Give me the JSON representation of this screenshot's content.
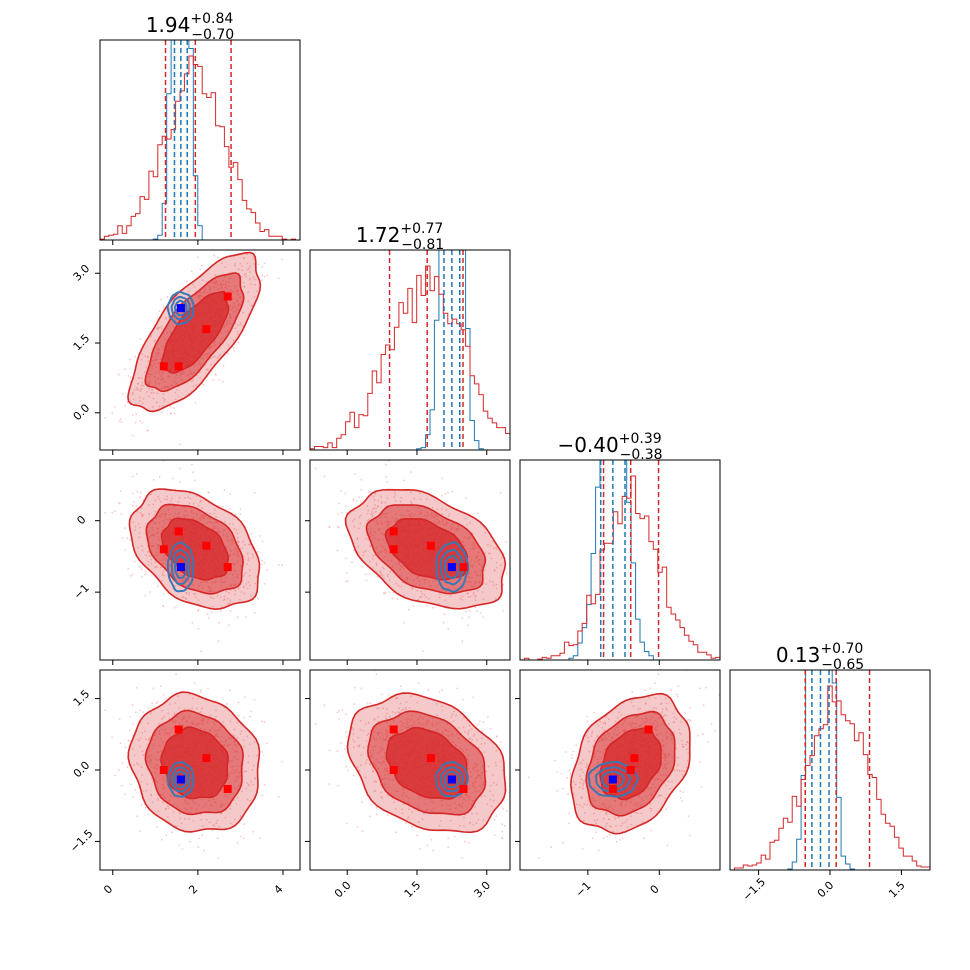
{
  "chart_data": {
    "type": "corner",
    "parameters": 4,
    "colors": {
      "samples_a": "#d62728",
      "samples_b": "#1f77b4",
      "marker_a": "#ff0000",
      "marker_b": "#0000ff"
    },
    "titles": [
      {
        "value": "1.94",
        "plus": "+0.84",
        "minus": "−0.70"
      },
      {
        "value": "1.72",
        "plus": "+0.77",
        "minus": "−0.81"
      },
      {
        "value": "−0.40",
        "plus": "+0.39",
        "minus": "−0.38"
      },
      {
        "value": "0.13",
        "plus": "+0.70",
        "minus": "−0.65"
      }
    ],
    "axes": [
      {
        "range": [
          -0.3,
          4.4
        ],
        "ticks": [
          0,
          2,
          4
        ],
        "tick_labels": [
          "0",
          "2",
          "4"
        ]
      },
      {
        "range": [
          -0.8,
          3.5
        ],
        "ticks": [
          0.0,
          1.5,
          3.0
        ],
        "tick_labels": [
          "0.0",
          "1.5",
          "3.0"
        ]
      },
      {
        "range": [
          -1.95,
          0.85
        ],
        "ticks": [
          -1,
          0
        ],
        "tick_labels": [
          "−1",
          "0"
        ]
      },
      {
        "range": [
          -2.1,
          2.1
        ],
        "ticks": [
          -1.5,
          0.0,
          1.5
        ],
        "tick_labels": [
          "−1.5",
          "0.0",
          "1.5"
        ]
      }
    ],
    "means": {
      "a": [
        1.94,
        1.72,
        -0.4,
        0.13
      ],
      "b": [
        1.6,
        2.25,
        -0.65,
        -0.2
      ]
    },
    "quantiles_a": [
      [
        1.24,
        1.94,
        2.78
      ],
      [
        0.91,
        1.72,
        2.49
      ],
      [
        -0.78,
        -0.4,
        -0.01
      ],
      [
        -0.52,
        0.13,
        0.83
      ]
    ],
    "quantiles_b": [
      [
        1.45,
        1.6,
        1.75
      ],
      [
        2.08,
        2.25,
        2.42
      ],
      [
        -0.82,
        -0.65,
        -0.48
      ],
      [
        -0.38,
        -0.2,
        -0.02
      ]
    ],
    "covariance_a": [
      [
        0.5,
        0.4,
        -0.1,
        -0.05
      ],
      [
        0.4,
        0.62,
        -0.12,
        -0.15
      ],
      [
        -0.1,
        -0.12,
        0.15,
        0.08
      ],
      [
        -0.05,
        -0.15,
        0.08,
        0.45
      ]
    ],
    "red_markers": [
      [
        1.2,
        1.0,
        -0.4,
        0.0
      ],
      [
        1.55,
        1.0,
        -0.15,
        0.85
      ],
      [
        2.2,
        1.8,
        -0.35,
        0.25
      ],
      [
        2.7,
        2.5,
        -0.65,
        -0.4
      ],
      [
        1.6,
        2.25,
        -0.65,
        -0.2
      ]
    ],
    "blue_marker": [
      1.6,
      2.25,
      -0.65,
      -0.2
    ]
  }
}
